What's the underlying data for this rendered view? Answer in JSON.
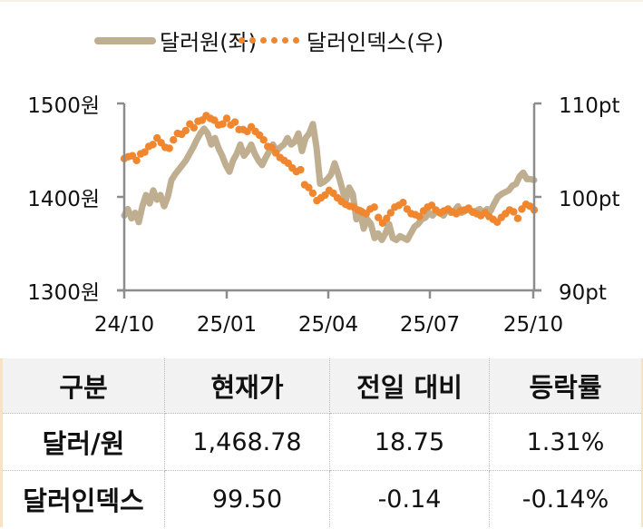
{
  "legend": {
    "won": {
      "label": "달러원(좌)",
      "color": "#bfae8f"
    },
    "dxy": {
      "label": "달러인덱스(우)",
      "color": "#f0862e"
    }
  },
  "axes": {
    "left": {
      "ticks": [
        "1500원",
        "1400원",
        "1300원"
      ],
      "range": [
        1300,
        1500
      ]
    },
    "right": {
      "ticks": [
        "110pt",
        "100pt",
        "90pt"
      ],
      "range": [
        90,
        110
      ]
    },
    "x": {
      "ticks": [
        "24/10",
        "25/01",
        "25/04",
        "25/07",
        "25/10"
      ]
    }
  },
  "chart_data": {
    "type": "line",
    "title": "",
    "xlabel": "",
    "ylabel": "달러원(좌) / 달러인덱스(우)",
    "x_ticks": [
      "24/10",
      "25/01",
      "25/04",
      "25/07",
      "25/10"
    ],
    "ylim_left": [
      1300,
      1500
    ],
    "ylim_right": [
      90,
      110
    ],
    "grid": false,
    "legend_position": "top",
    "series": [
      {
        "name": "달러원(좌)",
        "axis": "left",
        "style": "line",
        "values": [
          1380,
          1387,
          1377,
          1383,
          1373,
          1390,
          1402,
          1393,
          1407,
          1397,
          1402,
          1390,
          1400,
          1418,
          1424,
          1429,
          1434,
          1439,
          1446,
          1453,
          1461,
          1468,
          1473,
          1468,
          1456,
          1463,
          1452,
          1444,
          1434,
          1427,
          1439,
          1446,
          1456,
          1444,
          1449,
          1456,
          1446,
          1439,
          1434,
          1442,
          1449,
          1456,
          1449,
          1453,
          1456,
          1463,
          1456,
          1459,
          1468,
          1449,
          1463,
          1468,
          1478,
          1453,
          1414,
          1416,
          1419,
          1424,
          1436,
          1424,
          1410,
          1395,
          1410,
          1403,
          1376,
          1386,
          1366,
          1376,
          1371,
          1356,
          1361,
          1354,
          1361,
          1371,
          1356,
          1354,
          1358,
          1356,
          1354,
          1361,
          1368,
          1371,
          1376,
          1378,
          1383,
          1380,
          1385,
          1383,
          1380,
          1387,
          1383,
          1385,
          1390,
          1383,
          1385,
          1387,
          1383,
          1385,
          1387,
          1383,
          1387,
          1385,
          1393,
          1400,
          1403,
          1405,
          1407,
          1412,
          1414,
          1422,
          1426,
          1419,
          1419,
          1418
        ]
      },
      {
        "name": "달러인덱스(우)",
        "axis": "right",
        "style": "dots",
        "values": [
          104.1,
          104.3,
          104.4,
          103.9,
          104.6,
          104.8,
          105.4,
          105.6,
          106.3,
          105.8,
          105.3,
          105.2,
          106.1,
          106.8,
          106.7,
          107.1,
          107.8,
          107.4,
          108.1,
          108.2,
          108.7,
          108.4,
          108.2,
          107.7,
          107.8,
          108.4,
          107.7,
          108.0,
          107.2,
          107.2,
          107.0,
          107.5,
          107.0,
          106.6,
          106.1,
          105.4,
          105.3,
          104.7,
          104.2,
          103.9,
          103.6,
          103.1,
          102.7,
          102.9,
          101.3,
          101.0,
          100.4,
          99.6,
          99.9,
          100.2,
          100.7,
          100.4,
          99.9,
          99.5,
          99.2,
          99.0,
          98.9,
          98.6,
          98.4,
          98.2,
          98.7,
          98.9,
          97.8,
          97.2,
          97.7,
          98.3,
          98.9,
          99.1,
          99.4,
          98.7,
          98.2,
          98.1,
          97.9,
          98.5,
          98.9,
          99.1,
          98.6,
          98.3,
          98.5,
          98.7,
          98.4,
          98.2,
          98.5,
          98.6,
          98.8,
          98.4,
          98.2,
          98.0,
          98.3,
          97.9,
          97.6,
          97.3,
          97.8,
          98.2,
          98.6,
          98.4,
          97.7,
          98.7,
          99.2,
          99.0,
          98.6
        ]
      }
    ]
  },
  "table": {
    "headers": [
      "구분",
      "현재가",
      "전일 대비",
      "등락률"
    ],
    "rows": [
      [
        "달러/원",
        "1,468.78",
        "18.75",
        "1.31%"
      ],
      [
        "달러인덱스",
        "99.50",
        "-0.14",
        "-0.14%"
      ]
    ]
  }
}
